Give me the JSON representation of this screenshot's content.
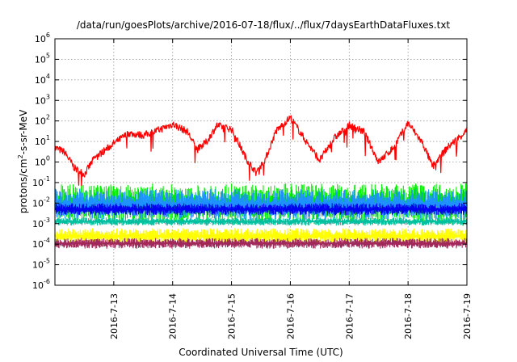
{
  "chart_data": {
    "type": "line",
    "title": "/data/run/goesPlots/archive/2016-07-18/flux/../flux/7daysEarthDataFluxes.txt",
    "xlabel": "Coordinated Universal Time (UTC)",
    "ylabel": {
      "base": "protons/cm",
      "sup": "2",
      "rest": "-s-sr-MeV"
    },
    "y_scale": "log",
    "ylim_exp": [
      -6,
      6
    ],
    "y_tick_exponents": [
      -6,
      -5,
      -4,
      -3,
      -2,
      -1,
      0,
      1,
      2,
      3,
      4,
      5,
      6
    ],
    "x_range_days": [
      "2016-07-12",
      "2016-07-19"
    ],
    "x_tick_labels": [
      "2016-7-13",
      "2016-7-14",
      "2016-7-15",
      "2016-7-16",
      "2016-7-17",
      "2016-7-18",
      "2016-7-19"
    ],
    "grid": true,
    "series": [
      {
        "color": "#ff0000",
        "style": "smooth",
        "x": [
          "2016-07-12 00:00",
          "2016-07-12 04:00",
          "2016-07-12 08:00",
          "2016-07-12 12:00",
          "2016-07-12 16:00",
          "2016-07-13 00:00",
          "2016-07-13 06:00",
          "2016-07-13 12:00",
          "2016-07-13 18:00",
          "2016-07-14 00:00",
          "2016-07-14 06:00",
          "2016-07-14 10:00",
          "2016-07-14 14:00",
          "2016-07-14 18:00",
          "2016-07-15 00:00",
          "2016-07-15 06:00",
          "2016-07-15 10:00",
          "2016-07-15 14:00",
          "2016-07-15 18:00",
          "2016-07-16 00:00",
          "2016-07-16 06:00",
          "2016-07-16 12:00",
          "2016-07-16 18:00",
          "2016-07-17 00:00",
          "2016-07-17 06:00",
          "2016-07-17 12:00",
          "2016-07-17 18:00",
          "2016-07-18 00:00",
          "2016-07-18 06:00",
          "2016-07-18 10:00",
          "2016-07-18 16:00",
          "2016-07-19 00:00"
        ],
        "y": [
          5,
          3,
          0.5,
          0.25,
          1.5,
          8,
          25,
          20,
          35,
          70,
          30,
          4,
          10,
          60,
          40,
          1.5,
          0.3,
          1.5,
          30,
          150,
          12,
          1.2,
          15,
          60,
          30,
          1,
          5,
          80,
          8,
          0.6,
          5,
          35
        ]
      },
      {
        "color": "#00ee00",
        "band": [
          0.001,
          0.09
        ]
      },
      {
        "color": "#1e90ff",
        "band": [
          0.0015,
          0.05
        ]
      },
      {
        "color": "#0000ee",
        "band": [
          0.0025,
          0.01
        ]
      },
      {
        "color": "#00c0a0",
        "band": [
          0.0008,
          0.002
        ]
      },
      {
        "color": "#ffff00",
        "band": [
          0.0001,
          0.0006
        ]
      },
      {
        "color": "#a0285a",
        "band": [
          6e-05,
          0.0002
        ]
      }
    ]
  }
}
